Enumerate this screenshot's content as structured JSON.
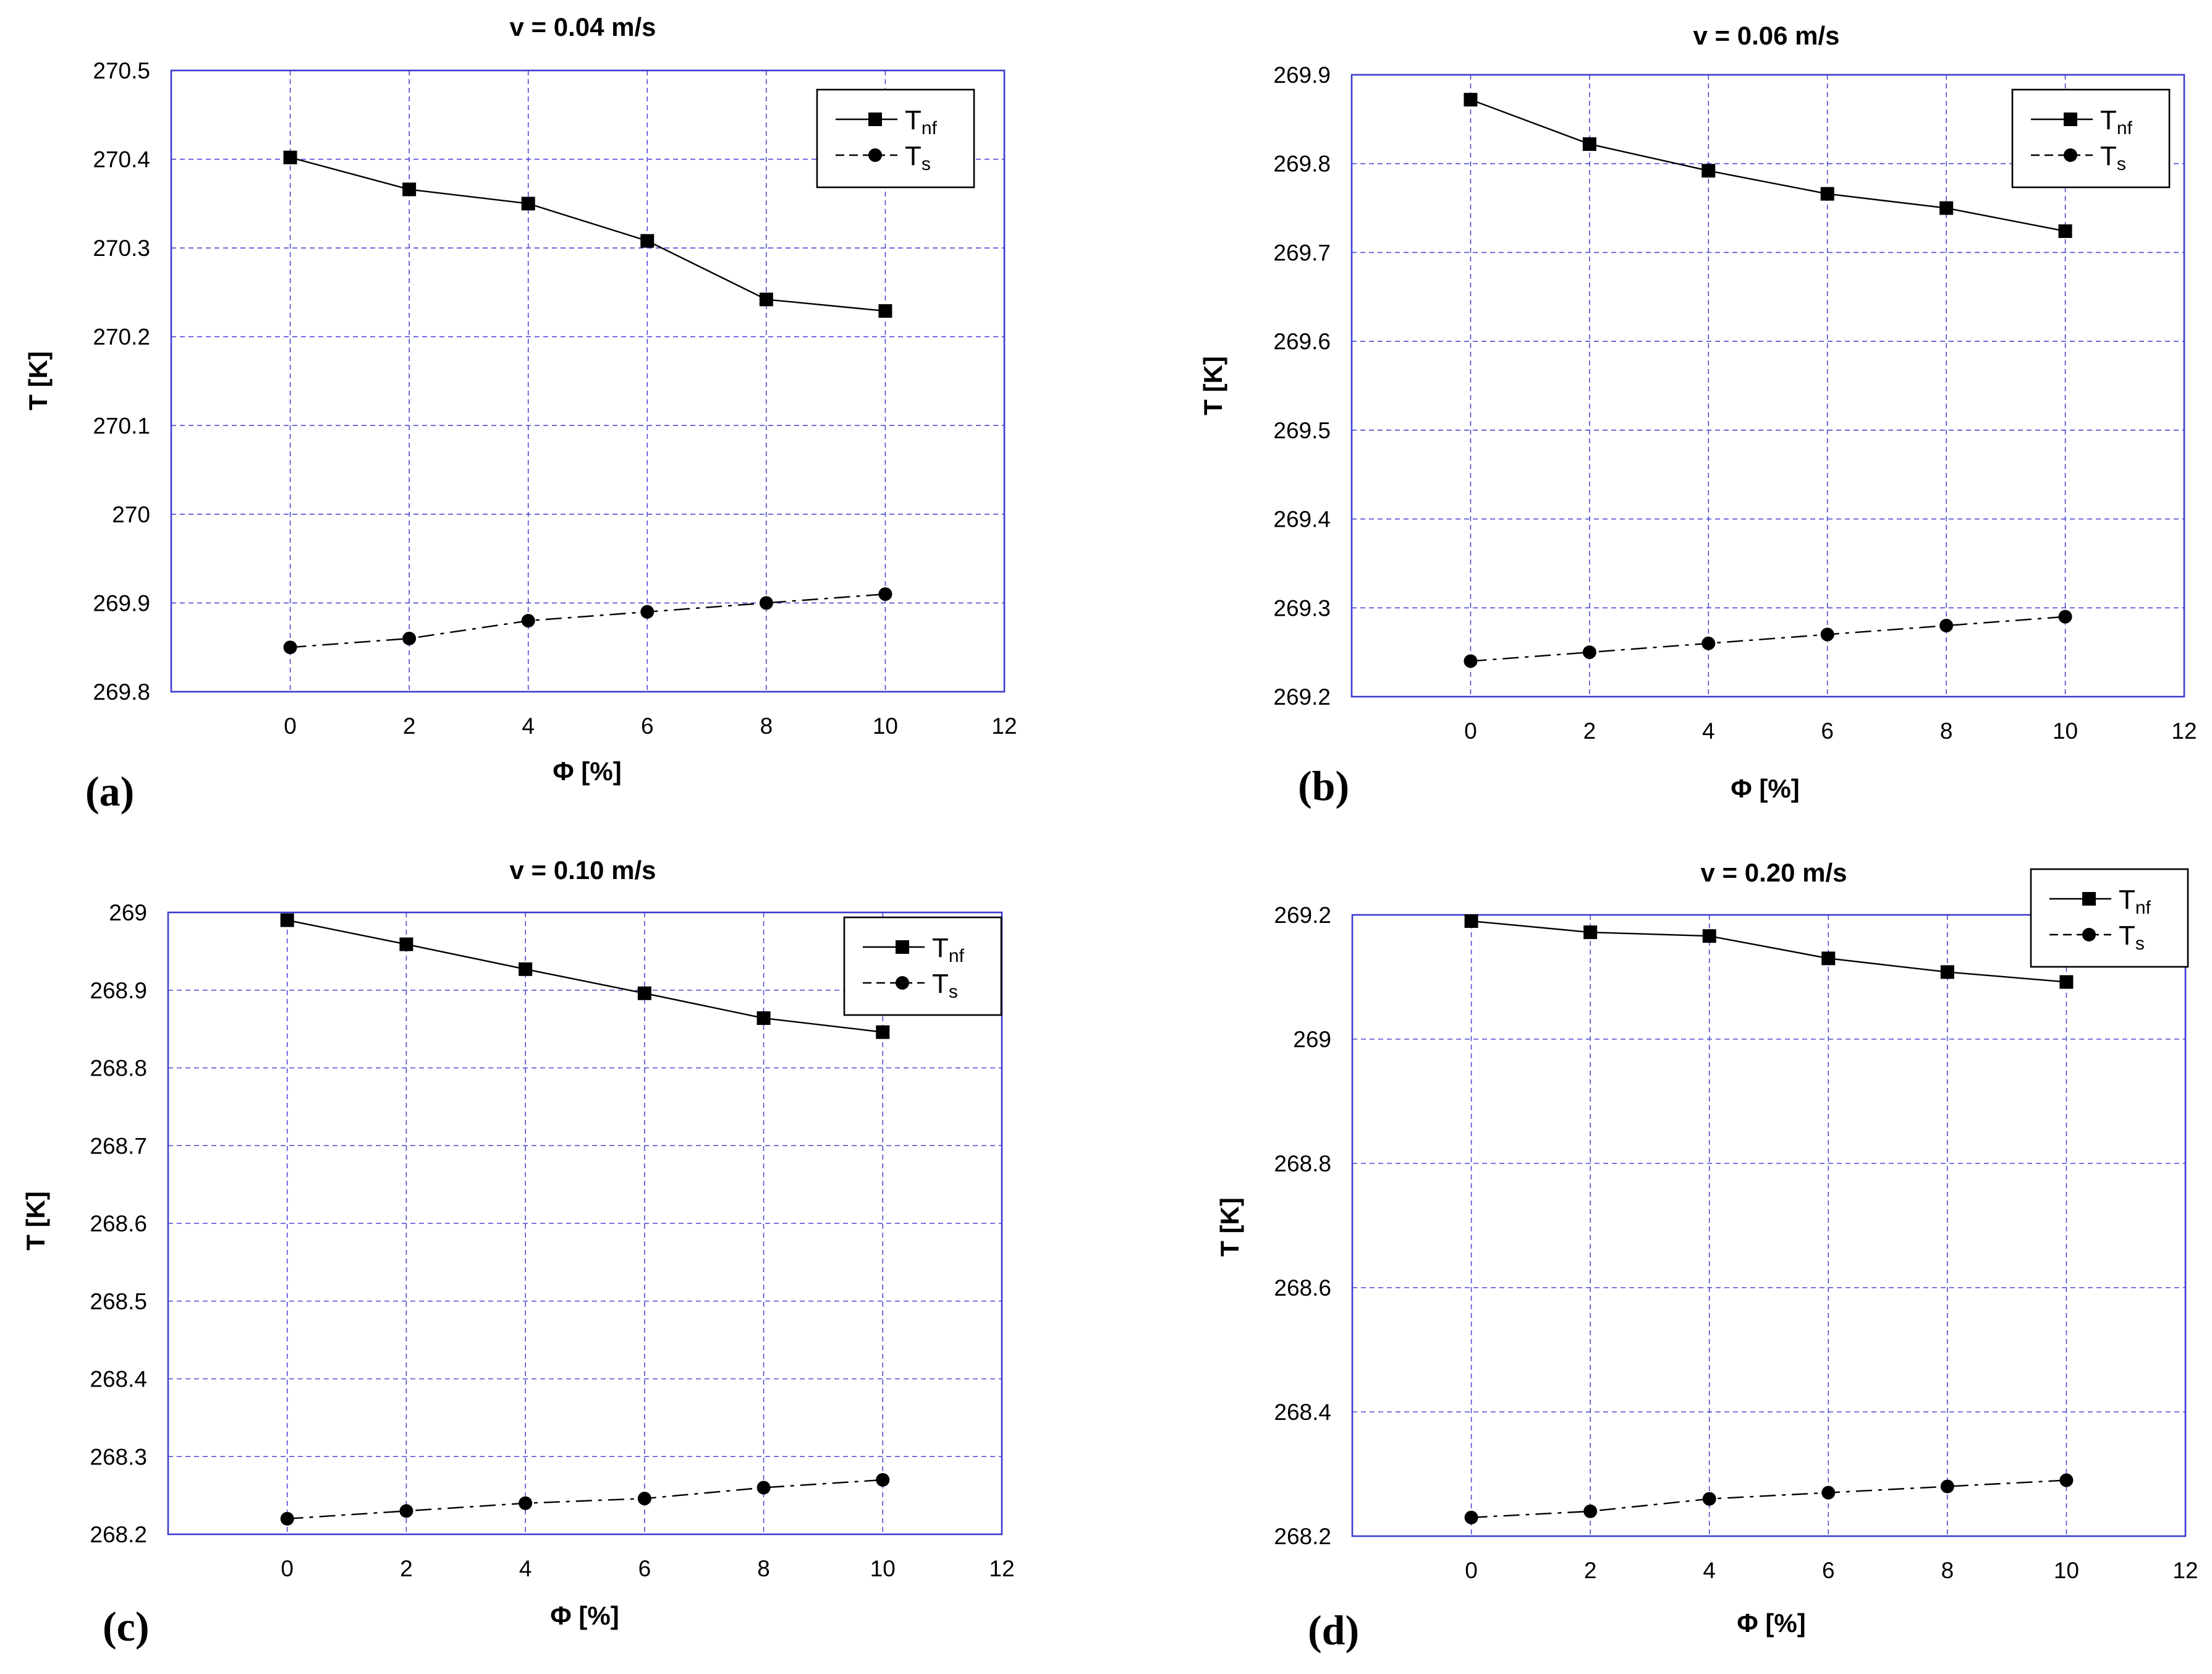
{
  "chart_data": [
    {
      "type": "line",
      "panel_label": "(a)",
      "title": "v = 0.04 m/s",
      "xlabel": "Φ [%]",
      "ylabel": "T [K]",
      "xlim": [
        -2,
        12
      ],
      "ylim": [
        269.8,
        270.5
      ],
      "xticks": [
        0,
        2,
        4,
        6,
        8,
        10,
        12
      ],
      "xtick_labels": [
        "0",
        "2",
        "4",
        "6",
        "8",
        "10",
        "12"
      ],
      "yticks": [
        269.8,
        269.9,
        270.0,
        270.1,
        270.2,
        270.3,
        270.4,
        270.5
      ],
      "ytick_labels": [
        "269.8",
        "269.9",
        "270",
        "270.1",
        "270.2",
        "270.3",
        "270.4",
        "270.5"
      ],
      "grid": true,
      "legend_position": "top-right",
      "series": [
        {
          "name": "Tnf",
          "label_main": "T",
          "label_sub": "nf",
          "marker": "square",
          "line": "solid",
          "x": [
            0,
            2,
            4,
            6,
            8,
            10
          ],
          "values": [
            270.402,
            270.366,
            270.35,
            270.308,
            270.242,
            270.229
          ]
        },
        {
          "name": "Ts",
          "label_main": "T",
          "label_sub": "s",
          "marker": "circle",
          "line": "dashed",
          "x": [
            0,
            2,
            4,
            6,
            8,
            10
          ],
          "values": [
            269.85,
            269.86,
            269.88,
            269.89,
            269.9,
            269.91
          ]
        }
      ]
    },
    {
      "type": "line",
      "panel_label": "(b)",
      "title": "v = 0.06 m/s",
      "xlabel": "Φ [%]",
      "ylabel": "T [K]",
      "xlim": [
        -2,
        12
      ],
      "ylim": [
        269.2,
        269.9
      ],
      "xticks": [
        0,
        2,
        4,
        6,
        8,
        10,
        12
      ],
      "xtick_labels": [
        "0",
        "2",
        "4",
        "6",
        "8",
        "10",
        "12"
      ],
      "yticks": [
        269.2,
        269.3,
        269.4,
        269.5,
        269.6,
        269.7,
        269.8,
        269.9
      ],
      "ytick_labels": [
        "269.2",
        "269.3",
        "269.4",
        "269.5",
        "269.6",
        "269.7",
        "269.8",
        "269.9"
      ],
      "grid": true,
      "legend_position": "top-right",
      "series": [
        {
          "name": "Tnf",
          "label_main": "T",
          "label_sub": "nf",
          "marker": "square",
          "line": "solid",
          "x": [
            0,
            2,
            4,
            6,
            8,
            10
          ],
          "values": [
            269.872,
            269.822,
            269.792,
            269.766,
            269.75,
            269.724
          ]
        },
        {
          "name": "Ts",
          "label_main": "T",
          "label_sub": "s",
          "marker": "circle",
          "line": "dashed",
          "x": [
            0,
            2,
            4,
            6,
            8,
            10
          ],
          "values": [
            269.24,
            269.25,
            269.26,
            269.27,
            269.28,
            269.29
          ]
        }
      ]
    },
    {
      "type": "line",
      "panel_label": "(c)",
      "title": "v = 0.10 m/s",
      "xlabel": "Φ [%]",
      "ylabel": "T [K]",
      "xlim": [
        -2,
        12
      ],
      "ylim": [
        268.2,
        269.0
      ],
      "xticks": [
        0,
        2,
        4,
        6,
        8,
        10,
        12
      ],
      "xtick_labels": [
        "0",
        "2",
        "4",
        "6",
        "8",
        "10",
        "12"
      ],
      "yticks": [
        268.2,
        268.3,
        268.4,
        268.5,
        268.6,
        268.7,
        268.8,
        268.9,
        269.0
      ],
      "ytick_labels": [
        "268.2",
        "268.3",
        "268.4",
        "268.5",
        "268.6",
        "268.7",
        "268.8",
        "268.9",
        "269"
      ],
      "grid": true,
      "legend_position": "top-right",
      "series": [
        {
          "name": "Tnf",
          "label_main": "T",
          "label_sub": "nf",
          "marker": "square",
          "line": "solid",
          "x": [
            0,
            2,
            4,
            6,
            8,
            10
          ],
          "values": [
            268.99,
            268.959,
            268.927,
            268.896,
            268.864,
            268.846
          ]
        },
        {
          "name": "Ts",
          "label_main": "T",
          "label_sub": "s",
          "marker": "circle",
          "line": "dashed",
          "x": [
            0,
            2,
            4,
            6,
            8,
            10
          ],
          "values": [
            268.22,
            268.23,
            268.24,
            268.246,
            268.26,
            268.27
          ]
        }
      ]
    },
    {
      "type": "line",
      "panel_label": "(d)",
      "title": "v = 0.20 m/s",
      "xlabel": "Φ [%]",
      "ylabel": "T [K]",
      "xlim": [
        -2,
        12
      ],
      "ylim": [
        268.2,
        269.2
      ],
      "xticks": [
        0,
        2,
        4,
        6,
        8,
        10,
        12
      ],
      "xtick_labels": [
        "0",
        "2",
        "4",
        "6",
        "8",
        "10",
        "12"
      ],
      "yticks": [
        268.2,
        268.4,
        268.6,
        268.8,
        269.0,
        269.2
      ],
      "ytick_labels": [
        "268.2",
        "268.4",
        "268.6",
        "268.8",
        "269",
        "269.2"
      ],
      "grid": true,
      "legend_position": "top-right",
      "series": [
        {
          "name": "Tnf",
          "label_main": "T",
          "label_sub": "nf",
          "marker": "square",
          "line": "solid",
          "x": [
            0,
            2,
            4,
            6,
            8,
            10
          ],
          "values": [
            269.19,
            269.172,
            269.166,
            269.13,
            269.108,
            269.092
          ]
        },
        {
          "name": "Ts",
          "label_main": "T",
          "label_sub": "s",
          "marker": "circle",
          "line": "dashed",
          "x": [
            0,
            2,
            4,
            6,
            8,
            10
          ],
          "values": [
            268.23,
            268.24,
            268.26,
            268.27,
            268.28,
            268.29
          ]
        }
      ]
    }
  ],
  "colors": {
    "grid": "#4a4ad4",
    "frame": "#3b3bd0",
    "series": "#000000"
  }
}
